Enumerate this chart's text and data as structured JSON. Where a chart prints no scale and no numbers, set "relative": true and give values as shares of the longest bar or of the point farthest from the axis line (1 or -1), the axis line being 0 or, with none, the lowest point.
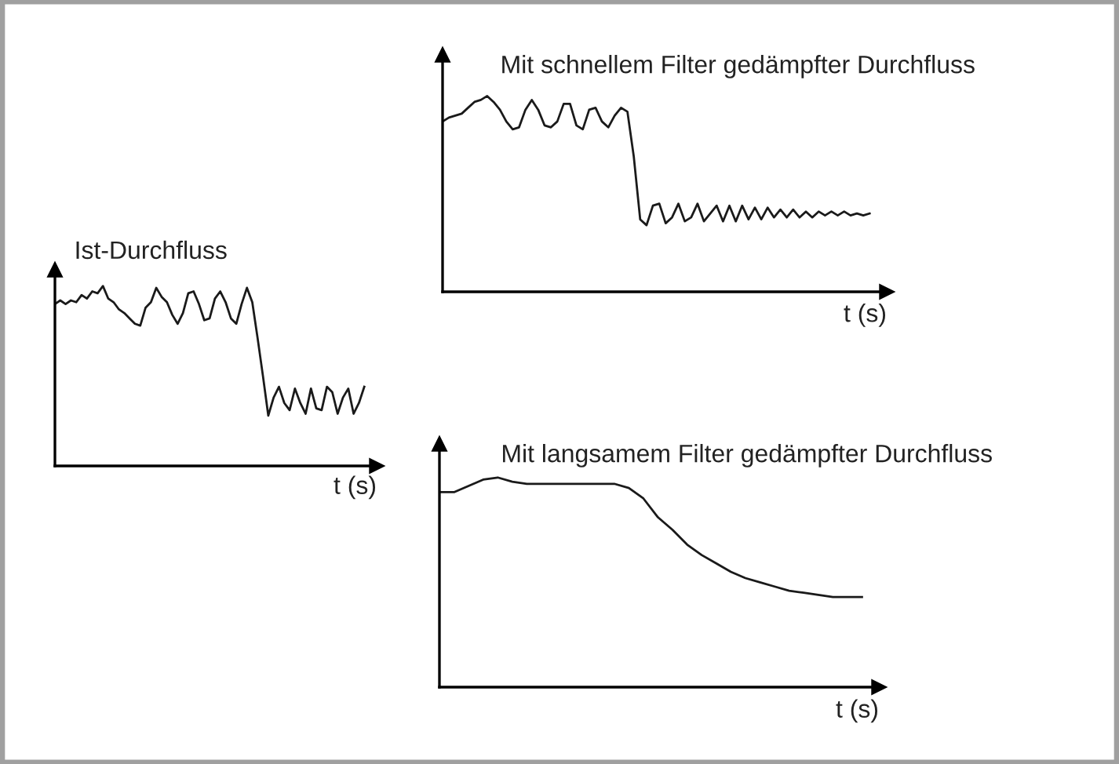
{
  "chart_data": [
    {
      "type": "line",
      "relative": true,
      "title": "Ist-Durchfluss",
      "xlabel": "t (s)",
      "tick_labels": false,
      "color": "#1a1a1a",
      "categories": [
        null,
        null,
        null,
        null,
        null,
        null,
        null,
        null,
        null,
        null,
        null,
        null,
        null,
        null,
        null,
        null,
        null,
        null,
        null,
        null,
        null,
        null,
        null,
        null,
        null,
        null,
        null,
        null,
        null,
        null,
        null,
        null,
        null,
        null,
        null,
        null,
        null,
        null,
        null,
        null,
        null,
        null,
        null,
        null,
        null,
        null,
        null,
        null,
        null,
        null,
        null,
        null,
        null,
        null,
        null,
        null,
        null,
        null,
        null
      ],
      "values": [
        0.9,
        0.92,
        0.9,
        0.92,
        0.91,
        0.95,
        0.93,
        0.97,
        0.96,
        1.0,
        0.93,
        0.91,
        0.87,
        0.85,
        0.82,
        0.79,
        0.78,
        0.88,
        0.91,
        0.99,
        0.94,
        0.91,
        0.84,
        0.79,
        0.85,
        0.96,
        0.97,
        0.9,
        0.81,
        0.82,
        0.93,
        0.97,
        0.91,
        0.82,
        0.79,
        0.9,
        0.99,
        0.91,
        0.71,
        0.5,
        0.28,
        0.38,
        0.44,
        0.35,
        0.31,
        0.43,
        0.35,
        0.29,
        0.43,
        0.32,
        0.31,
        0.44,
        0.41,
        0.29,
        0.38,
        0.43,
        0.29,
        0.35,
        0.44
      ]
    },
    {
      "type": "line",
      "relative": true,
      "title": "Mit schnellem Filter gedämpfter Durchfluss",
      "xlabel": "t (s)",
      "tick_labels": false,
      "color": "#1a1a1a",
      "categories": [
        null,
        null,
        null,
        null,
        null,
        null,
        null,
        null,
        null,
        null,
        null,
        null,
        null,
        null,
        null,
        null,
        null,
        null,
        null,
        null,
        null,
        null,
        null,
        null,
        null,
        null,
        null,
        null,
        null,
        null,
        null,
        null,
        null,
        null,
        null,
        null,
        null,
        null,
        null,
        null,
        null,
        null,
        null,
        null,
        null,
        null,
        null,
        null,
        null,
        null,
        null,
        null,
        null,
        null,
        null,
        null,
        null,
        null,
        null,
        null,
        null,
        null,
        null,
        null,
        null,
        null,
        null,
        null
      ],
      "values": [
        0.87,
        0.89,
        0.9,
        0.91,
        0.94,
        0.97,
        0.98,
        1.0,
        0.97,
        0.93,
        0.87,
        0.83,
        0.84,
        0.93,
        0.98,
        0.93,
        0.85,
        0.84,
        0.87,
        0.96,
        0.96,
        0.85,
        0.83,
        0.93,
        0.94,
        0.87,
        0.84,
        0.9,
        0.94,
        0.92,
        0.69,
        0.37,
        0.34,
        0.44,
        0.45,
        0.35,
        0.38,
        0.45,
        0.36,
        0.38,
        0.45,
        0.36,
        0.4,
        0.44,
        0.36,
        0.44,
        0.36,
        0.44,
        0.37,
        0.43,
        0.37,
        0.43,
        0.38,
        0.42,
        0.38,
        0.42,
        0.38,
        0.41,
        0.38,
        0.41,
        0.39,
        0.41,
        0.39,
        0.41,
        0.39,
        0.4,
        0.39,
        0.4
      ]
    },
    {
      "type": "line",
      "relative": true,
      "title": "Mit langsamem Filter gedämpfter Durchfluss",
      "xlabel": "t (s)",
      "tick_labels": false,
      "color": "#1a1a1a",
      "categories": [
        null,
        null,
        null,
        null,
        null,
        null,
        null,
        null,
        null,
        null,
        null,
        null,
        null,
        null,
        null,
        null,
        null,
        null,
        null,
        null,
        null,
        null,
        null,
        null,
        null,
        null,
        null,
        null,
        null,
        null
      ],
      "values": [
        0.93,
        0.93,
        0.96,
        0.99,
        1.0,
        0.98,
        0.97,
        0.97,
        0.97,
        0.97,
        0.97,
        0.97,
        0.97,
        0.95,
        0.9,
        0.81,
        0.75,
        0.68,
        0.63,
        0.59,
        0.55,
        0.52,
        0.5,
        0.48,
        0.46,
        0.45,
        0.44,
        0.43,
        0.43,
        0.43
      ]
    }
  ]
}
